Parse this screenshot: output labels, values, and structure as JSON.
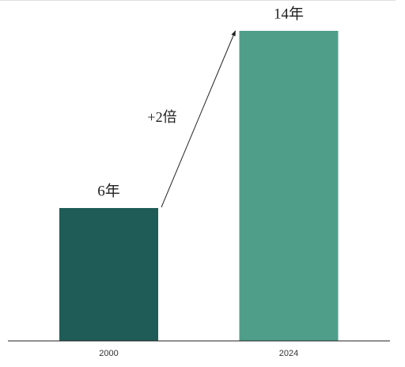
{
  "chart_data": {
    "type": "bar",
    "categories": [
      "2000",
      "2024"
    ],
    "values": [
      6,
      14
    ],
    "value_labels": [
      "6年",
      "14年"
    ],
    "colors": [
      "#1f5c57",
      "#4e9e8a"
    ],
    "annotation": "+2倍"
  }
}
